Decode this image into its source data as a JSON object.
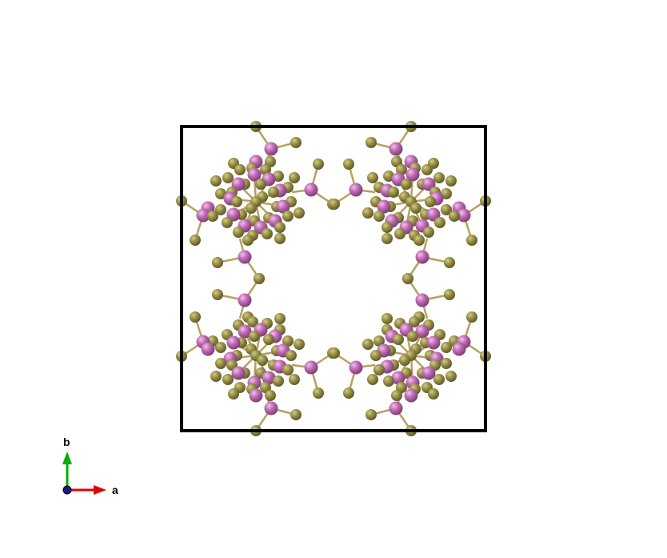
{
  "axes": {
    "a_label": "a",
    "b_label": "b",
    "a_color": "#e00000",
    "b_color": "#00b000",
    "c_color": "#1a1a80"
  },
  "atoms": {
    "gold_color": "#8d8640",
    "gold_highlight": "#d2cc8a",
    "pink_color": "#b25fa8",
    "pink_highlight": "#f0c2ea",
    "bond_color": "#b8a060"
  },
  "cell": {
    "edge_color": "#000000"
  }
}
